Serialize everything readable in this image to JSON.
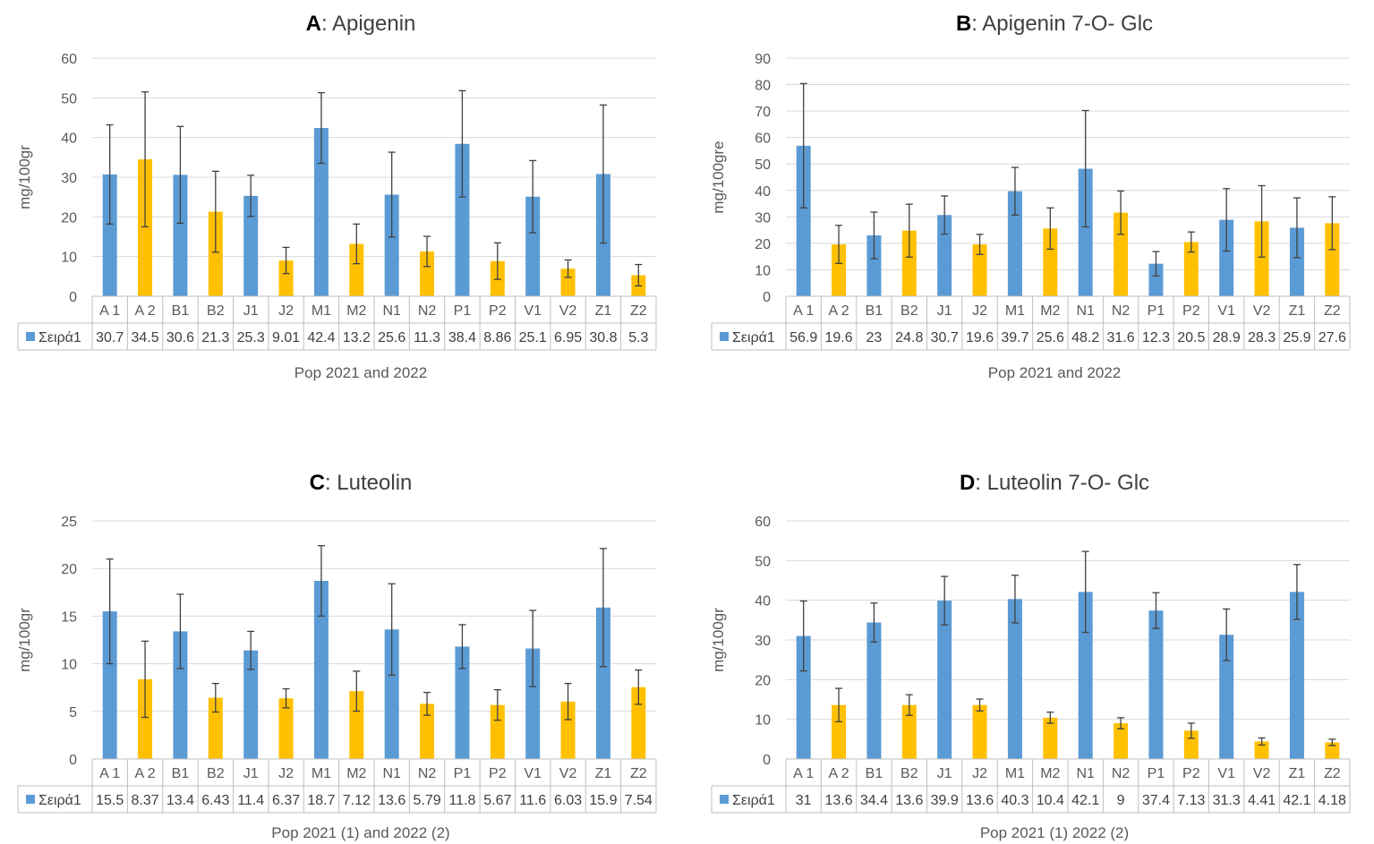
{
  "colors": {
    "bar_year1": "#5B9BD5",
    "bar_year2": "#FFC000",
    "grid": "#D9D9D9",
    "error_bar": "#404040",
    "table_border": "#BFBFBF"
  },
  "chart_data": [
    {
      "type": "bar",
      "title_letter": "A",
      "title_text": ": Apigenin",
      "categories": [
        "A 1",
        "A 2",
        "B1",
        "B2",
        "J1",
        "J2",
        "M1",
        "M2",
        "N1",
        "N2",
        "P1",
        "P2",
        "V1",
        "V2",
        "Z1",
        "Z2"
      ],
      "series": [
        {
          "name": "Σειρά1",
          "values": [
            30.7,
            34.5,
            30.6,
            21.3,
            25.3,
            9.01,
            42.4,
            13.2,
            25.6,
            11.3,
            38.4,
            8.86,
            25.1,
            6.95,
            30.8,
            5.3
          ],
          "labels": [
            "30.7",
            "34.5",
            "30.6",
            "21.3",
            "25.3",
            "9.01",
            "42.4",
            "13.2",
            "25.6",
            "11.3",
            "38.4",
            "8.86",
            "25.1",
            "6.95",
            "30.8",
            "5.3"
          ],
          "errors": [
            12.5,
            17.0,
            12.2,
            10.2,
            5.2,
            3.3,
            8.9,
            5.0,
            10.7,
            3.8,
            13.4,
            4.6,
            9.1,
            2.2,
            17.4,
            2.7
          ]
        }
      ],
      "bar_colors": [
        "year1",
        "year2",
        "year1",
        "year2",
        "year1",
        "year2",
        "year1",
        "year2",
        "year1",
        "year2",
        "year1",
        "year2",
        "year1",
        "year2",
        "year1",
        "year2"
      ],
      "ylabel": "mg/100gr",
      "xlabel": "Pop 2021 and 2022",
      "ylim": [
        0,
        60
      ],
      "yticks": [
        0,
        10,
        20,
        30,
        40,
        50,
        60
      ],
      "grid": true,
      "legend": "data-table"
    },
    {
      "type": "bar",
      "title_letter": "B",
      "title_text": ": Apigenin 7-O- Glc",
      "categories": [
        "A 1",
        "A 2",
        "B1",
        "B2",
        "J1",
        "J2",
        "M1",
        "M2",
        "N1",
        "N2",
        "P1",
        "P2",
        "V1",
        "V2",
        "Z1",
        "Z2"
      ],
      "series": [
        {
          "name": "Σειρά1",
          "values": [
            56.9,
            19.6,
            23,
            24.8,
            30.7,
            19.6,
            39.7,
            25.6,
            48.2,
            31.6,
            12.3,
            20.5,
            28.9,
            28.3,
            25.9,
            27.6
          ],
          "labels": [
            "56.9",
            "19.6",
            "23",
            "24.8",
            "30.7",
            "19.6",
            "39.7",
            "25.6",
            "48.2",
            "31.6",
            "12.3",
            "20.5",
            "28.9",
            "28.3",
            "25.9",
            "27.6"
          ],
          "errors": [
            23.5,
            7.2,
            8.8,
            10.0,
            7.2,
            3.8,
            9.0,
            7.8,
            22.0,
            8.2,
            4.6,
            3.8,
            11.8,
            13.5,
            11.3,
            10.0
          ]
        }
      ],
      "bar_colors": [
        "year1",
        "year2",
        "year1",
        "year2",
        "year1",
        "year2",
        "year1",
        "year2",
        "year1",
        "year2",
        "year1",
        "year2",
        "year1",
        "year2",
        "year1",
        "year2"
      ],
      "ylabel": "mg/100gre",
      "xlabel": "Pop 2021 and 2022",
      "ylim": [
        0,
        90
      ],
      "yticks": [
        0,
        10,
        20,
        30,
        40,
        50,
        60,
        70,
        80,
        90
      ],
      "grid": true,
      "legend": "data-table"
    },
    {
      "type": "bar",
      "title_letter": "C",
      "title_text": ": Luteolin",
      "categories": [
        "A 1",
        "A 2",
        "B1",
        "B2",
        "J1",
        "J2",
        "M1",
        "M2",
        "N1",
        "N2",
        "P1",
        "P2",
        "V1",
        "V2",
        "Z1",
        "Z2"
      ],
      "series": [
        {
          "name": "Σειρά1",
          "values": [
            15.5,
            8.37,
            13.4,
            6.43,
            11.4,
            6.37,
            18.7,
            7.12,
            13.6,
            5.79,
            11.8,
            5.67,
            11.6,
            6.03,
            15.9,
            7.54
          ],
          "labels": [
            "15.5",
            "8.37",
            "13.4",
            "6.43",
            "11.4",
            "6.37",
            "18.7",
            "7.12",
            "13.6",
            "5.79",
            "11.8",
            "5.67",
            "11.6",
            "6.03",
            "15.9",
            "7.54"
          ],
          "errors": [
            5.5,
            4.0,
            3.9,
            1.5,
            2.0,
            1.0,
            3.7,
            2.1,
            4.8,
            1.2,
            2.3,
            1.6,
            4.0,
            1.9,
            6.2,
            1.8
          ]
        }
      ],
      "bar_colors": [
        "year1",
        "year2",
        "year1",
        "year2",
        "year1",
        "year2",
        "year1",
        "year2",
        "year1",
        "year2",
        "year1",
        "year2",
        "year1",
        "year2",
        "year1",
        "year2"
      ],
      "ylabel": "mg/100gr",
      "xlabel": "Pop 2021 (1) and 2022 (2)",
      "ylim": [
        0,
        25
      ],
      "yticks": [
        0,
        5,
        10,
        15,
        20,
        25
      ],
      "grid": true,
      "legend": "data-table"
    },
    {
      "type": "bar",
      "title_letter": "D",
      "title_text": ": Luteolin 7-O- Glc",
      "categories": [
        "A 1",
        "A 2",
        "B1",
        "B2",
        "J1",
        "J2",
        "M1",
        "M2",
        "N1",
        "N2",
        "P1",
        "P2",
        "V1",
        "V2",
        "Z1",
        "Z2"
      ],
      "series": [
        {
          "name": "Σειρά1",
          "values": [
            31,
            13.6,
            34.4,
            13.6,
            39.9,
            13.6,
            40.3,
            10.4,
            42.1,
            9,
            37.4,
            7.13,
            31.3,
            4.41,
            42.1,
            4.18
          ],
          "labels": [
            "31",
            "13.6",
            "34.4",
            "13.6",
            "39.9",
            "13.6",
            "40.3",
            "10.4",
            "42.1",
            "9",
            "37.4",
            "7.13",
            "31.3",
            "4.41",
            "42.1",
            "4.18"
          ],
          "errors": [
            8.8,
            4.2,
            4.9,
            2.6,
            6.1,
            1.5,
            6.0,
            1.4,
            10.2,
            1.4,
            4.5,
            1.9,
            6.5,
            0.9,
            6.9,
            0.8
          ]
        }
      ],
      "bar_colors": [
        "year1",
        "year2",
        "year1",
        "year2",
        "year1",
        "year2",
        "year1",
        "year2",
        "year1",
        "year2",
        "year1",
        "year2",
        "year1",
        "year2",
        "year1",
        "year2"
      ],
      "ylabel": "mg/100gr",
      "xlabel": "Pop 2021 (1) 2022 (2)",
      "ylim": [
        0,
        60
      ],
      "yticks": [
        0,
        10,
        20,
        30,
        40,
        50,
        60
      ],
      "grid": true,
      "legend": "data-table"
    }
  ]
}
